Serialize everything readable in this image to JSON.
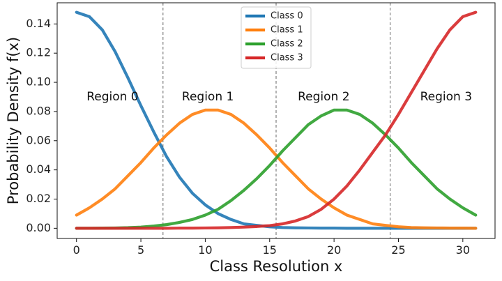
{
  "chart_data": {
    "type": "line",
    "xlabel": "Class Resolution x",
    "ylabel": "Probability Density f(x)",
    "xlim": [
      -1.5,
      32.5
    ],
    "ylim": [
      -0.007,
      0.1545
    ],
    "xticks": [
      0,
      5,
      10,
      15,
      20,
      25,
      30
    ],
    "xtick_labels": [
      "0",
      "5",
      "10",
      "15",
      "20",
      "25",
      "30"
    ],
    "yticks": [
      0.0,
      0.02,
      0.04,
      0.06,
      0.08,
      0.1,
      0.12,
      0.14
    ],
    "ytick_labels": [
      "0.00",
      "0.02",
      "0.04",
      "0.06",
      "0.08",
      "0.10",
      "0.12",
      "0.14"
    ],
    "grid": false,
    "legend_position": "top-center",
    "x": [
      0,
      1,
      2,
      3,
      4,
      5,
      6,
      7,
      8,
      9,
      10,
      11,
      12,
      13,
      14,
      15,
      16,
      17,
      18,
      19,
      20,
      21,
      22,
      23,
      24,
      25,
      26,
      27,
      28,
      29,
      30,
      31
    ],
    "series": [
      {
        "name": "Class 0",
        "color": "#1f77b4",
        "values": [
          0.148,
          0.145,
          0.136,
          0.121,
          0.103,
          0.084,
          0.066,
          0.049,
          0.035,
          0.024,
          0.016,
          0.01,
          0.006,
          0.003,
          0.002,
          0.001,
          0.0005,
          0.0003,
          0.0002,
          0.0001,
          0.0001,
          0,
          0,
          0,
          0,
          0,
          0,
          0,
          0,
          0,
          0,
          0
        ]
      },
      {
        "name": "Class 1",
        "color": "#ff7f0e",
        "values": [
          0.009,
          0.014,
          0.02,
          0.027,
          0.036,
          0.045,
          0.055,
          0.064,
          0.072,
          0.078,
          0.081,
          0.081,
          0.078,
          0.072,
          0.064,
          0.055,
          0.045,
          0.036,
          0.027,
          0.02,
          0.014,
          0.009,
          0.006,
          0.003,
          0.002,
          0.001,
          0.0005,
          0.0003,
          0.0002,
          0.0001,
          0.0001,
          0
        ]
      },
      {
        "name": "Class 2",
        "color": "#2ca02c",
        "values": [
          0,
          0,
          0.0001,
          0.0002,
          0.0004,
          0.0008,
          0.0015,
          0.0025,
          0.004,
          0.006,
          0.009,
          0.013,
          0.019,
          0.026,
          0.034,
          0.043,
          0.053,
          0.062,
          0.071,
          0.077,
          0.081,
          0.081,
          0.078,
          0.072,
          0.064,
          0.055,
          0.045,
          0.036,
          0.027,
          0.02,
          0.014,
          0.009
        ]
      },
      {
        "name": "Class 3",
        "color": "#d62728",
        "values": [
          0,
          0,
          0,
          0,
          0,
          0,
          0,
          0,
          0.0001,
          0.0001,
          0.0002,
          0.0003,
          0.0005,
          0.0008,
          0.0012,
          0.0018,
          0.003,
          0.005,
          0.008,
          0.013,
          0.02,
          0.029,
          0.04,
          0.052,
          0.064,
          0.078,
          0.093,
          0.108,
          0.123,
          0.136,
          0.145,
          0.148
        ]
      }
    ],
    "region_boundaries": [
      6.72,
      15.5,
      24.35
    ],
    "region_labels": [
      {
        "text": "Region 0",
        "x": 2.8,
        "y": 0.09
      },
      {
        "text": "Region 1",
        "x": 10.2,
        "y": 0.09
      },
      {
        "text": "Region 2",
        "x": 19.2,
        "y": 0.09
      },
      {
        "text": "Region 3",
        "x": 28.7,
        "y": 0.09
      }
    ]
  }
}
